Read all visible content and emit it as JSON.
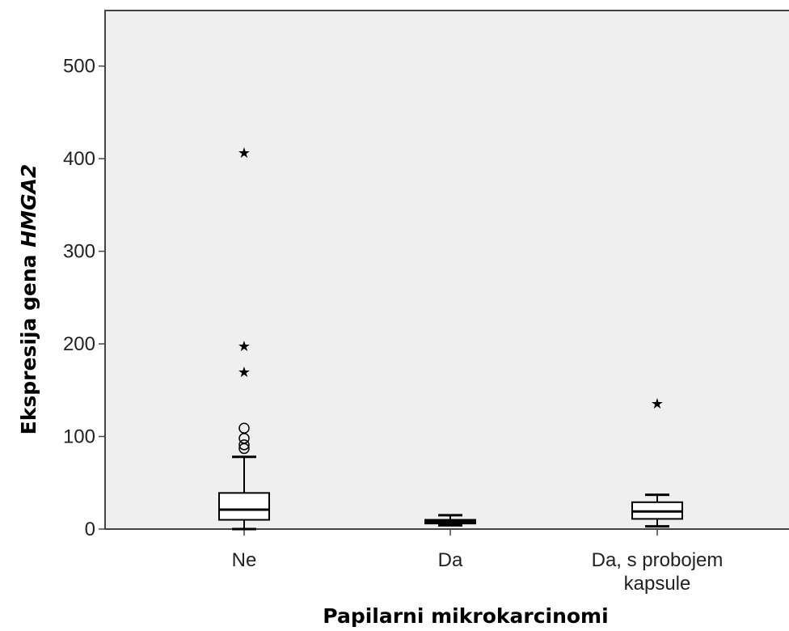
{
  "chart_data": {
    "type": "boxplot",
    "title": "",
    "xlabel": "Papilarni mikrokarcinomi",
    "ylabel_parts": [
      {
        "text": "Ekspresija gena ",
        "italic": false
      },
      {
        "text": "HMGA2",
        "italic": true
      }
    ],
    "ylim": [
      0,
      560
    ],
    "yticks": [
      0,
      100,
      200,
      300,
      400,
      500
    ],
    "categories": [
      {
        "label_lines": [
          "Ne"
        ]
      },
      {
        "label_lines": [
          "Da"
        ]
      },
      {
        "label_lines": [
          "Da, s probojem",
          "kapsule"
        ]
      }
    ],
    "boxes": [
      {
        "whisker_low": 0,
        "q1": 10,
        "median": 21,
        "q3": 39,
        "whisker_high": 78,
        "outliers": [
          87,
          91,
          98,
          109
        ],
        "extremes": [
          172,
          200,
          409
        ]
      },
      {
        "whisker_low": 4,
        "q1": 6,
        "median": 8,
        "q3": 10,
        "whisker_high": 15,
        "outliers": [],
        "extremes": []
      },
      {
        "whisker_low": 3,
        "q1": 11,
        "median": 19,
        "q3": 29,
        "whisker_high": 37,
        "outliers": [],
        "extremes": [
          138
        ]
      }
    ],
    "colors": {
      "plot_background": "#efefef",
      "box_fill": "#ffffff",
      "line": "#000000",
      "frame": "#444444"
    },
    "grid": false,
    "legend": "none"
  }
}
